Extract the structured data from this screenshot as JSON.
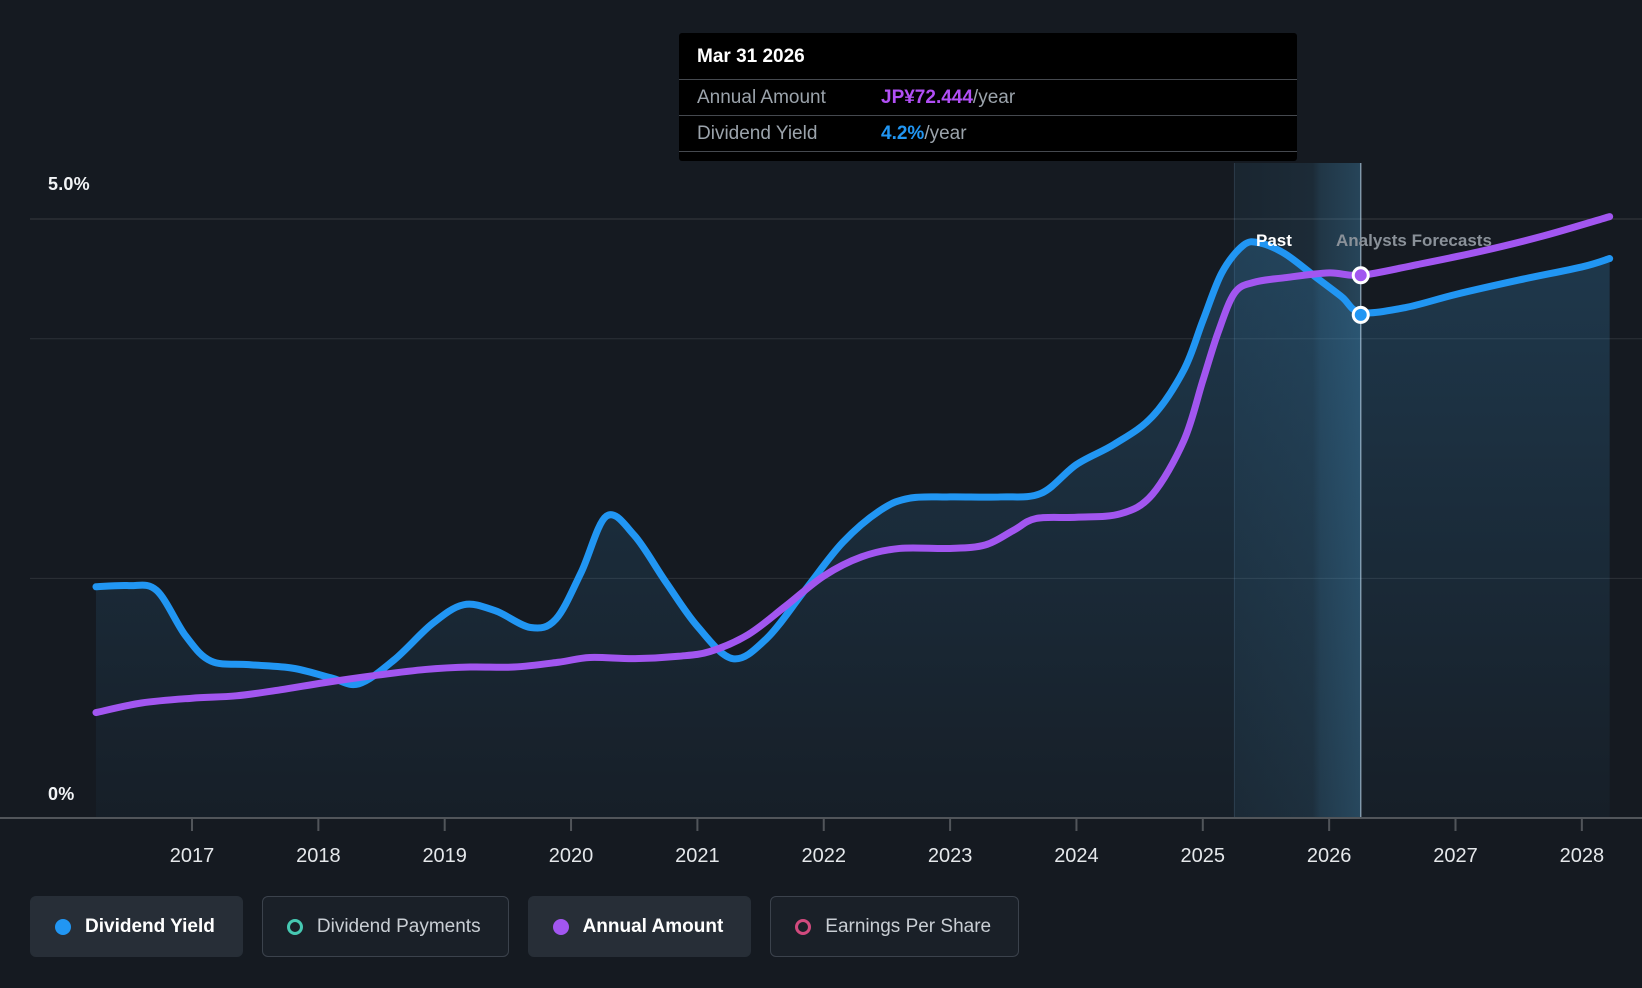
{
  "colors": {
    "page_bg": "#151A21",
    "blue": "#2196F3",
    "purple": "#A256F0",
    "purple_bright": "#B14FF5",
    "teal": "#46C8B2",
    "pink": "#D14A7E",
    "gridline": "rgba(255,255,255,0.10)",
    "axis_line": "rgba(255,255,255,0.26)",
    "divider": "rgba(190,215,235,0.60)"
  },
  "tooltip": {
    "date": "Mar 31 2026",
    "rows": [
      {
        "label": "Annual Amount",
        "value": "JP¥72.444",
        "suffix": "/year",
        "color": "#B14FF5"
      },
      {
        "label": "Dividend Yield",
        "value": "4.2%",
        "suffix": "/year",
        "color": "#2196F3"
      }
    ]
  },
  "axis": {
    "y_top": "5.0%",
    "y_bottom": "0%"
  },
  "annotations": {
    "past": "Past",
    "forecasts": "Analysts Forecasts"
  },
  "legend": {
    "items": [
      {
        "slug": "dividend-yield",
        "label": "Dividend Yield",
        "color": "#2196F3",
        "style": "filled",
        "active": true
      },
      {
        "slug": "dividend-payments",
        "label": "Dividend Payments",
        "color": "#46C8B2",
        "style": "ring",
        "active": false
      },
      {
        "slug": "annual-amount",
        "label": "Annual Amount",
        "color": "#A256F0",
        "style": "filled",
        "active": true
      },
      {
        "slug": "earnings-per-share",
        "label": "Earnings Per Share",
        "color": "#D14A7E",
        "style": "ring",
        "active": false
      }
    ]
  },
  "chart_data": {
    "type": "line",
    "title": "Dividend history and forecast",
    "x_axis": {
      "tick_years": [
        2017,
        2018,
        2019,
        2020,
        2021,
        2022,
        2023,
        2024,
        2025,
        2026,
        2027,
        2028
      ],
      "range": [
        2016.24,
        2028.22
      ]
    },
    "y_axis": {
      "label_top": "5.0%",
      "label_bottom": "0%",
      "range_pct": [
        0,
        5
      ],
      "gridlines_pct": [
        5,
        4,
        2,
        0
      ],
      "grid": true
    },
    "divider_year": 2026.25,
    "highlight_band_start_year": 2025.25,
    "legend_position": "bottom",
    "series": [
      {
        "name": "Dividend Yield",
        "unit": "%",
        "color": "#2196F3",
        "area_fill": true,
        "marker": {
          "year": 2026.25,
          "value": 4.2,
          "label": "4.2%/year"
        },
        "points": [
          [
            2016.24,
            1.93
          ],
          [
            2016.5,
            1.94
          ],
          [
            2016.72,
            1.9
          ],
          [
            2016.95,
            1.52
          ],
          [
            2017.15,
            1.31
          ],
          [
            2017.45,
            1.28
          ],
          [
            2017.8,
            1.25
          ],
          [
            2018.1,
            1.17
          ],
          [
            2018.32,
            1.12
          ],
          [
            2018.6,
            1.32
          ],
          [
            2018.9,
            1.62
          ],
          [
            2019.15,
            1.78
          ],
          [
            2019.4,
            1.73
          ],
          [
            2019.68,
            1.59
          ],
          [
            2019.88,
            1.66
          ],
          [
            2020.08,
            2.05
          ],
          [
            2020.28,
            2.52
          ],
          [
            2020.5,
            2.36
          ],
          [
            2020.75,
            1.97
          ],
          [
            2021.0,
            1.6
          ],
          [
            2021.28,
            1.33
          ],
          [
            2021.55,
            1.5
          ],
          [
            2021.85,
            1.9
          ],
          [
            2022.15,
            2.3
          ],
          [
            2022.45,
            2.57
          ],
          [
            2022.68,
            2.67
          ],
          [
            2023.0,
            2.68
          ],
          [
            2023.4,
            2.68
          ],
          [
            2023.72,
            2.71
          ],
          [
            2024.0,
            2.95
          ],
          [
            2024.3,
            3.12
          ],
          [
            2024.6,
            3.35
          ],
          [
            2024.85,
            3.74
          ],
          [
            2025.0,
            4.15
          ],
          [
            2025.15,
            4.55
          ],
          [
            2025.32,
            4.78
          ],
          [
            2025.45,
            4.8
          ],
          [
            2025.65,
            4.71
          ],
          [
            2025.9,
            4.51
          ],
          [
            2026.1,
            4.35
          ],
          [
            2026.25,
            4.22
          ],
          [
            2026.6,
            4.26
          ],
          [
            2027.0,
            4.37
          ],
          [
            2027.5,
            4.49
          ],
          [
            2028.0,
            4.6
          ],
          [
            2028.22,
            4.67
          ]
        ]
      },
      {
        "name": "Annual Amount",
        "unit": "left-axis display scale (true value hidden axis)",
        "color": "#A256F0",
        "area_fill": false,
        "marker": {
          "year": 2026.25,
          "value": 4.53,
          "label": "JP¥72.444/year"
        },
        "known_values": [
          {
            "date": "Mar 31 2026",
            "value": "JP¥72.444/year"
          }
        ],
        "points": [
          [
            2016.24,
            0.88
          ],
          [
            2016.6,
            0.96
          ],
          [
            2017.0,
            1.0
          ],
          [
            2017.35,
            1.02
          ],
          [
            2017.7,
            1.07
          ],
          [
            2018.05,
            1.13
          ],
          [
            2018.45,
            1.19
          ],
          [
            2018.85,
            1.24
          ],
          [
            2019.2,
            1.26
          ],
          [
            2019.55,
            1.26
          ],
          [
            2019.9,
            1.3
          ],
          [
            2020.15,
            1.34
          ],
          [
            2020.5,
            1.33
          ],
          [
            2020.85,
            1.35
          ],
          [
            2021.1,
            1.39
          ],
          [
            2021.4,
            1.53
          ],
          [
            2021.7,
            1.77
          ],
          [
            2022.0,
            2.02
          ],
          [
            2022.3,
            2.18
          ],
          [
            2022.6,
            2.25
          ],
          [
            2023.0,
            2.25
          ],
          [
            2023.28,
            2.28
          ],
          [
            2023.5,
            2.4
          ],
          [
            2023.68,
            2.5
          ],
          [
            2024.0,
            2.51
          ],
          [
            2024.35,
            2.54
          ],
          [
            2024.6,
            2.7
          ],
          [
            2024.85,
            3.15
          ],
          [
            2025.0,
            3.65
          ],
          [
            2025.12,
            4.05
          ],
          [
            2025.25,
            4.38
          ],
          [
            2025.4,
            4.47
          ],
          [
            2025.65,
            4.51
          ],
          [
            2026.0,
            4.55
          ],
          [
            2026.25,
            4.53
          ],
          [
            2026.7,
            4.62
          ],
          [
            2027.2,
            4.73
          ],
          [
            2027.7,
            4.86
          ],
          [
            2028.22,
            5.02
          ]
        ]
      }
    ]
  }
}
